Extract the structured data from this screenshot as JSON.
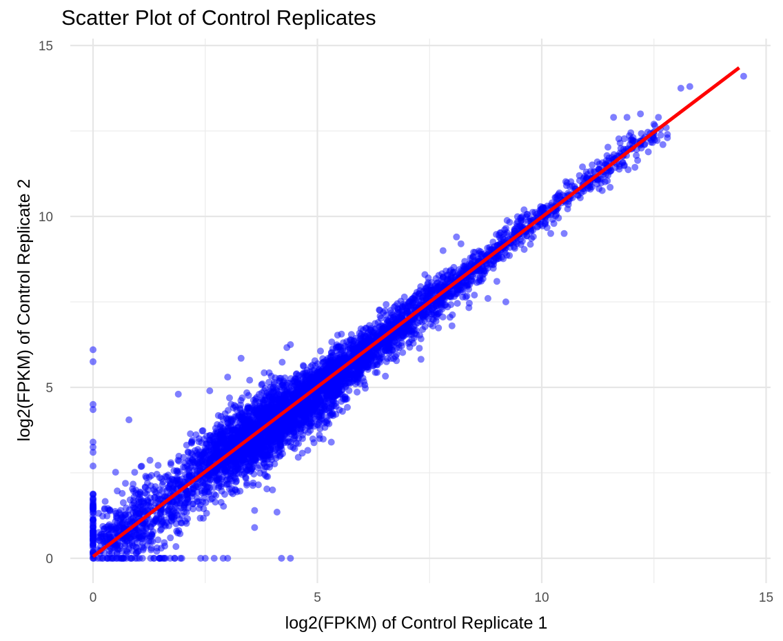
{
  "chart_data": {
    "type": "scatter",
    "title": "Scatter Plot of Control Replicates",
    "xlabel": "log2(FPKM) of Control Replicate 1",
    "ylabel": "log2(FPKM) of Control Replicate 2",
    "xlim": [
      -0.7,
      15.2
    ],
    "ylim": [
      -0.7,
      15.0
    ],
    "x_ticks": [
      0,
      5,
      10,
      15
    ],
    "y_ticks": [
      0,
      5,
      10,
      15
    ],
    "x_tick_labels": [
      "0",
      "5",
      "10",
      "15"
    ],
    "y_tick_labels": [
      "0",
      "5",
      "10",
      "15"
    ],
    "minor_grid": [
      2.5,
      7.5,
      12.5
    ],
    "grid": true,
    "legend": "none",
    "series": [
      {
        "name": "genes",
        "color": "#0000ff",
        "alpha": 0.5,
        "distribution": "dense cloud along diagonal y≈x, roughly 12000 genes, spread narrowing at high expression",
        "points": [
          [
            0,
            6.1
          ],
          [
            0,
            5.75
          ],
          [
            0,
            4.5
          ],
          [
            0,
            4.35
          ],
          [
            0,
            3.4
          ],
          [
            0,
            3.25
          ],
          [
            0,
            3.1
          ],
          [
            0,
            2.7
          ],
          [
            0.8,
            4.05
          ],
          [
            1.9,
            4.8
          ],
          [
            2.6,
            4.9
          ],
          [
            3.0,
            5.3
          ],
          [
            3.3,
            5.85
          ],
          [
            4.4,
            6.25
          ],
          [
            2.4,
            0
          ],
          [
            2.5,
            0
          ],
          [
            2.7,
            0
          ],
          [
            2.9,
            0
          ],
          [
            3.0,
            0
          ],
          [
            4.2,
            0
          ],
          [
            4.4,
            0
          ],
          [
            3.6,
            0.9
          ],
          [
            4.1,
            1.35
          ],
          [
            3.6,
            1.4
          ],
          [
            4.0,
            2.0
          ],
          [
            9.2,
            7.5
          ],
          [
            8.8,
            7.6
          ],
          [
            8.5,
            7.7
          ],
          [
            9.0,
            8.1
          ],
          [
            8.0,
            6.8
          ],
          [
            8.1,
            9.4
          ],
          [
            7.8,
            9.0
          ],
          [
            8.2,
            9.2
          ],
          [
            10.5,
            9.5
          ],
          [
            10.2,
            9.5
          ],
          [
            12.5,
            12.4
          ],
          [
            12.5,
            12.3
          ],
          [
            12.8,
            12.4
          ],
          [
            12.8,
            12.3
          ],
          [
            12.7,
            12.1
          ],
          [
            12.5,
            12.7
          ],
          [
            12.6,
            12.9
          ],
          [
            11.6,
            12.9
          ],
          [
            11.9,
            12.9
          ],
          [
            12.2,
            13.0
          ],
          [
            13.1,
            13.75
          ],
          [
            13.3,
            13.8
          ],
          [
            14.5,
            14.1
          ]
        ]
      }
    ],
    "fit_line": {
      "name": "linear fit",
      "color": "#ff0000",
      "x": [
        0,
        14.4
      ],
      "y": [
        0.05,
        14.35
      ]
    }
  }
}
